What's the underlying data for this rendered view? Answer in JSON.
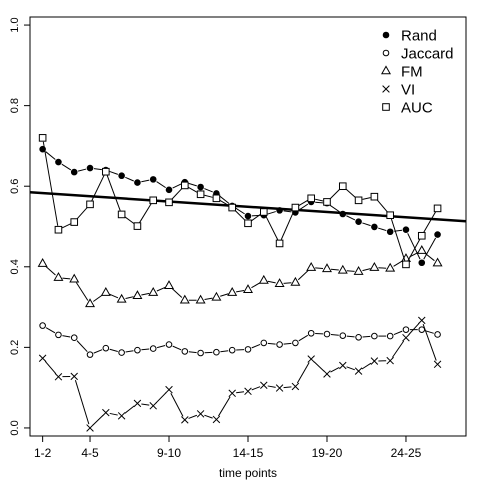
{
  "chart_data": {
    "type": "line",
    "xlabel": "time points",
    "ylabel": "",
    "title": "",
    "xlim": [
      0.2,
      27.8
    ],
    "ylim": [
      -0.02,
      1.02
    ],
    "grid": false,
    "legend_position": "top-right",
    "x_ticks": [
      {
        "x": 1,
        "label": "1-2"
      },
      {
        "x": 4,
        "label": "4-5"
      },
      {
        "x": 9,
        "label": "9-10"
      },
      {
        "x": 14,
        "label": "14-15"
      },
      {
        "x": 19,
        "label": "19-20"
      },
      {
        "x": 24,
        "label": "24-25"
      }
    ],
    "y_ticks": [
      {
        "y": 0.0,
        "label": "0.0"
      },
      {
        "y": 0.2,
        "label": "0.2"
      },
      {
        "y": 0.4,
        "label": "0.4"
      },
      {
        "y": 0.6,
        "label": "0.6"
      },
      {
        "y": 0.8,
        "label": "0.8"
      },
      {
        "y": 1.0,
        "label": "1.0"
      }
    ],
    "x": [
      1,
      2,
      3,
      4,
      5,
      6,
      7,
      8,
      9,
      10,
      11,
      12,
      13,
      14,
      15,
      16,
      17,
      18,
      19,
      20,
      21,
      22,
      23,
      24,
      25,
      26
    ],
    "series": [
      {
        "name": "Rand",
        "marker": "filled-circle",
        "values": [
          0.692,
          0.66,
          0.635,
          0.645,
          0.64,
          0.626,
          0.609,
          0.617,
          0.591,
          0.61,
          0.598,
          0.582,
          0.551,
          0.526,
          0.528,
          0.54,
          0.535,
          0.561,
          0.558,
          0.531,
          0.512,
          0.499,
          0.487,
          0.492,
          0.41,
          0.48
        ]
      },
      {
        "name": "Jaccard",
        "marker": "open-circle",
        "values": [
          0.254,
          0.231,
          0.224,
          0.182,
          0.198,
          0.187,
          0.193,
          0.197,
          0.207,
          0.19,
          0.186,
          0.188,
          0.193,
          0.195,
          0.211,
          0.207,
          0.211,
          0.235,
          0.233,
          0.229,
          0.225,
          0.228,
          0.228,
          0.244,
          0.244,
          0.232
        ]
      },
      {
        "name": "FM",
        "marker": "triangle",
        "values": [
          0.408,
          0.373,
          0.369,
          0.308,
          0.336,
          0.319,
          0.328,
          0.336,
          0.353,
          0.317,
          0.317,
          0.324,
          0.336,
          0.343,
          0.366,
          0.358,
          0.361,
          0.398,
          0.395,
          0.391,
          0.388,
          0.398,
          0.396,
          0.42,
          0.44,
          0.409
        ]
      },
      {
        "name": "VI",
        "marker": "cross",
        "values": [
          0.173,
          0.127,
          0.128,
          0.0,
          0.038,
          0.03,
          0.061,
          0.055,
          0.095,
          0.02,
          0.035,
          0.021,
          0.086,
          0.091,
          0.106,
          0.099,
          0.103,
          0.171,
          0.134,
          0.155,
          0.141,
          0.166,
          0.167,
          0.224,
          0.267,
          0.158
        ]
      },
      {
        "name": "AUC",
        "marker": "open-square",
        "values": [
          0.72,
          0.492,
          0.511,
          0.555,
          0.636,
          0.53,
          0.501,
          0.565,
          0.56,
          0.602,
          0.58,
          0.57,
          0.547,
          0.508,
          0.536,
          0.458,
          0.547,
          0.57,
          0.561,
          0.6,
          0.565,
          0.574,
          0.528,
          0.406,
          0.477,
          0.545
        ]
      }
    ],
    "trend_line": {
      "x": [
        0.2,
        27.8
      ],
      "y": [
        0.585,
        0.513
      ]
    }
  }
}
